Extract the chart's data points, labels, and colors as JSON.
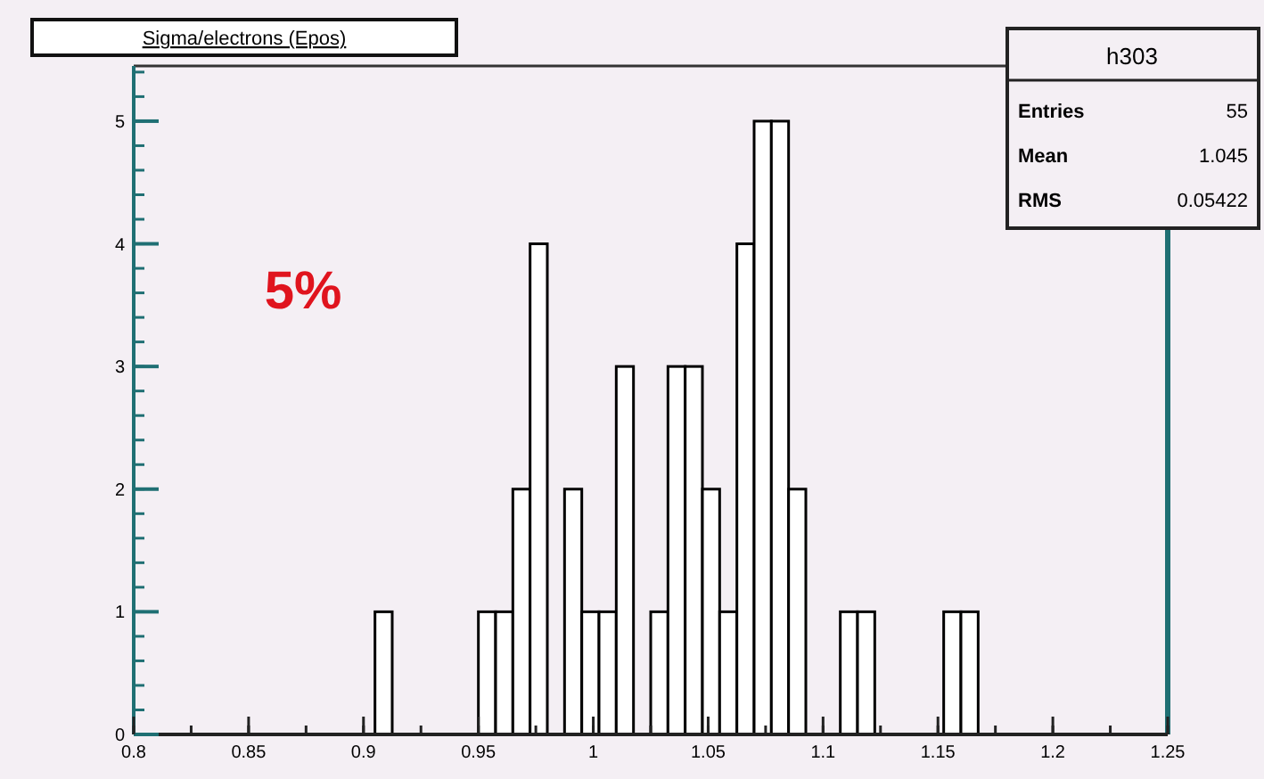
{
  "chart_data": {
    "type": "histogram",
    "title": "Sigma/electrons (Epos)",
    "bins": [
      0.8,
      0.8075,
      0.815,
      0.8225,
      0.83,
      0.8375,
      0.845,
      0.8525,
      0.86,
      0.8675,
      0.875,
      0.8825,
      0.89,
      0.8975,
      0.905,
      0.9125,
      0.92,
      0.9275,
      0.935,
      0.9425,
      0.95,
      0.9575,
      0.965,
      0.9725,
      0.98,
      0.9875,
      0.995,
      1.0025,
      1.01,
      1.0175,
      1.025,
      1.0325,
      1.04,
      1.0475,
      1.055,
      1.0625,
      1.07,
      1.0775,
      1.085,
      1.0925,
      1.1,
      1.1075,
      1.115,
      1.1225,
      1.13,
      1.1375,
      1.145,
      1.1525,
      1.16,
      1.1675,
      1.175,
      1.1825,
      1.19,
      1.1975,
      1.205,
      1.2125,
      1.22,
      1.2275,
      1.235,
      1.2425,
      1.25
    ],
    "values": [
      0,
      0,
      0,
      0,
      0,
      0,
      0,
      0,
      0,
      0,
      0,
      0,
      0,
      0,
      1,
      0,
      0,
      0,
      0,
      0,
      1,
      1,
      2,
      4,
      0,
      2,
      1,
      1,
      3,
      0,
      1,
      3,
      3,
      2,
      1,
      4,
      5,
      5,
      2,
      0,
      0,
      1,
      1,
      0,
      0,
      0,
      0,
      1,
      1,
      0,
      0,
      0,
      0,
      0,
      0,
      0,
      0,
      0,
      0,
      0
    ],
    "color": "#000000",
    "xlim": [
      0.8,
      1.25
    ],
    "xticks": [
      0.8,
      0.85,
      0.9,
      0.95,
      1,
      1.05,
      1.1,
      1.15,
      1.2,
      1.25
    ],
    "ylim": [
      0,
      5.45
    ],
    "yticks": [
      0,
      1,
      2,
      3,
      4,
      5
    ],
    "grid": false,
    "annotations": [
      "5%",
      "h303",
      "Entries",
      "55",
      "Mean",
      "1.045",
      "RMS",
      "0.05422"
    ]
  }
}
